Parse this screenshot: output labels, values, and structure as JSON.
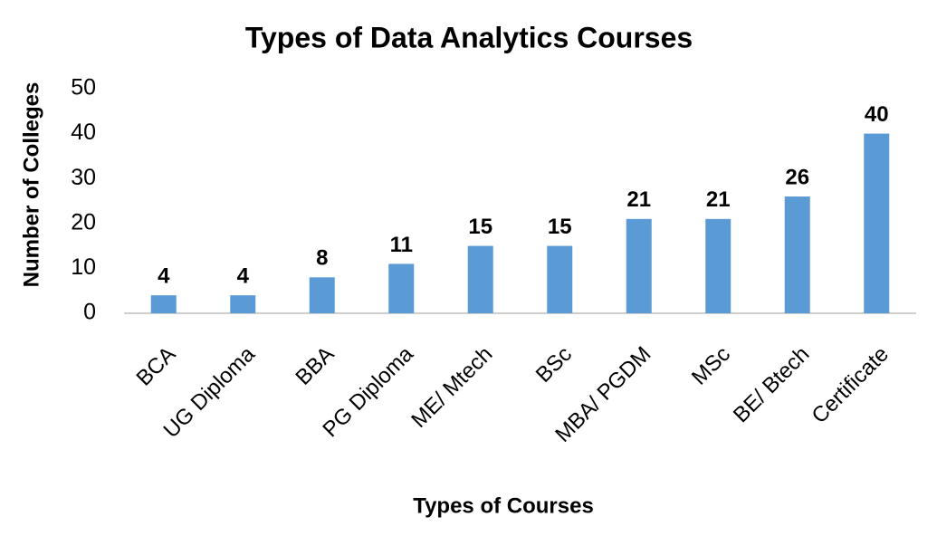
{
  "chart_data": {
    "type": "bar",
    "title": "Types of Data Analytics Courses",
    "x_label": "Types of Courses",
    "y_label": "Number of Colleges",
    "categories": [
      "BCA",
      "UG Diploma",
      "BBA",
      "PG Diploma",
      "ME/ Mtech",
      "BSc",
      "MBA/ PGDM",
      "MSc",
      "BE/ Btech",
      "Certificate"
    ],
    "values": [
      4,
      4,
      8,
      11,
      15,
      15,
      21,
      21,
      26,
      40
    ],
    "color": "#5b9bd5",
    "ylim": [
      0,
      50
    ],
    "yticks": [
      0,
      10,
      20,
      30,
      40,
      50
    ],
    "grid": false
  }
}
